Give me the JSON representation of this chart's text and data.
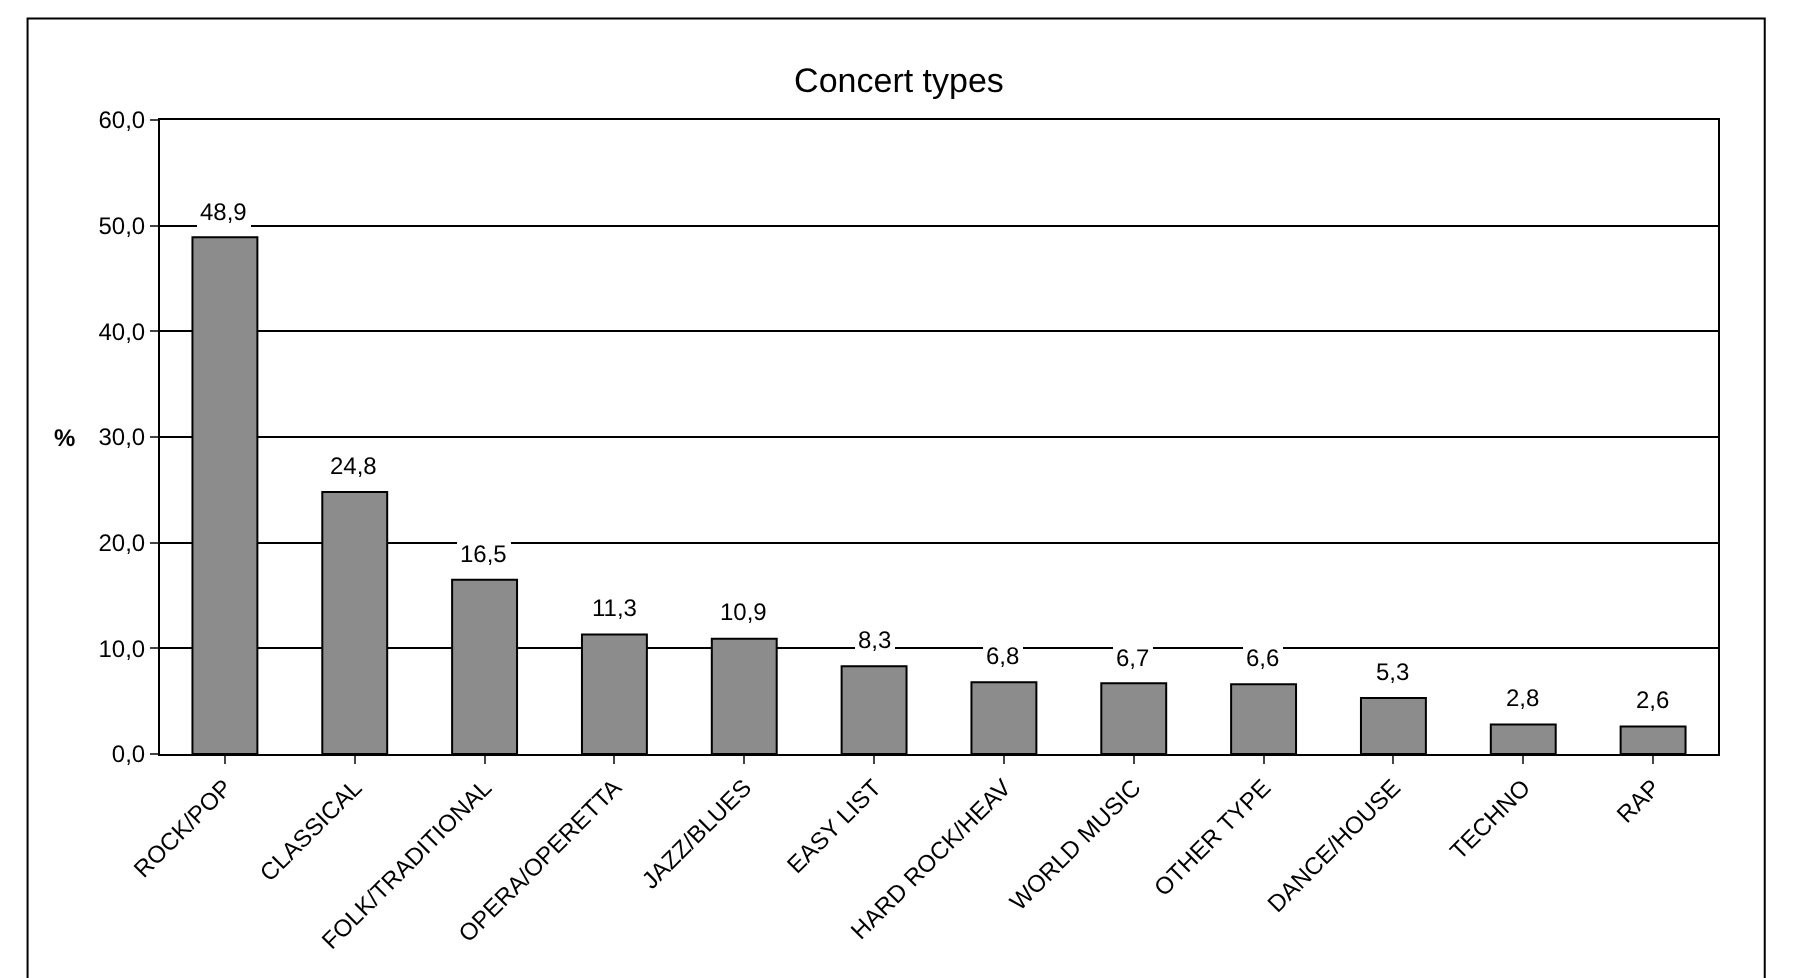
{
  "chart_data": {
    "type": "bar",
    "title": "Concert types",
    "ylabel": "%",
    "categories": [
      "ROCK/POP",
      "CLASSICAL",
      "FOLK/TRADITIONAL",
      "OPERA/OPERETTA",
      "JAZZ/BLUES",
      "EASY LIST",
      "HARD ROCK/HEAV",
      "WORLD MUSIC",
      "OTHER TYPE",
      "DANCE/HOUSE",
      "TECHNO",
      "RAP"
    ],
    "values": [
      48.9,
      24.8,
      16.5,
      11.3,
      10.9,
      8.3,
      6.8,
      6.7,
      6.6,
      5.3,
      2.8,
      2.6
    ],
    "value_labels": [
      "48,9",
      "24,8",
      "16,5",
      "11,3",
      "10,9",
      "8,3",
      "6,8",
      "6,7",
      "6,6",
      "5,3",
      "2,8",
      "2,6"
    ],
    "color": "#8c8c8c",
    "ylim": [
      0,
      60
    ],
    "yticks": [
      {
        "value": 0,
        "label": "0,0"
      },
      {
        "value": 10,
        "label": "10,0"
      },
      {
        "value": 20,
        "label": "20,0"
      },
      {
        "value": 30,
        "label": "30,0"
      },
      {
        "value": 40,
        "label": "40,0"
      },
      {
        "value": 50,
        "label": "50,0"
      },
      {
        "value": 60,
        "label": "60,0"
      }
    ],
    "grid": "y",
    "legend": false
  }
}
